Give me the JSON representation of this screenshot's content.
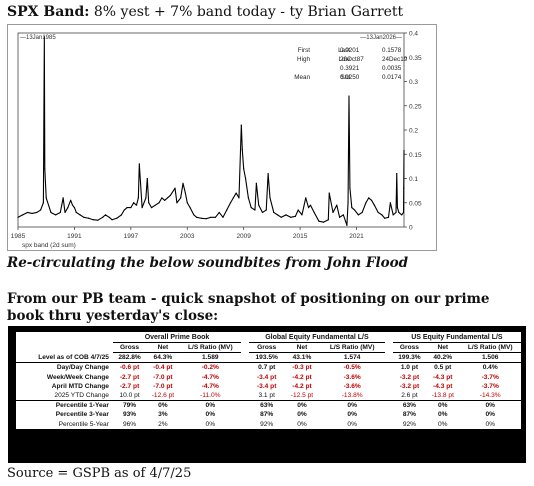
{
  "headline": {
    "bold": "SPX Band:",
    "rest": " 8% yest + 7% band today - ty Brian Garrett"
  },
  "chart_data": {
    "type": "line",
    "x_start_label": "13Jan1985",
    "x_end_label": "13Jan2026",
    "xtick_labels": [
      "1985",
      "1991",
      "1997",
      "2003",
      "2009",
      "2015",
      "2021"
    ],
    "xtick_years": [
      1985,
      1991,
      1997,
      2003,
      2009,
      2015,
      2021
    ],
    "xlim": [
      1985,
      2026.05
    ],
    "ylim": [
      0,
      0.4
    ],
    "ytick_labels": [
      "0",
      "0.05",
      "0.1",
      "0.15",
      "0.2",
      "0.25",
      "0.3",
      "0.35",
      "0.4"
    ],
    "ytick_values": [
      0,
      0.05,
      0.1,
      0.15,
      0.2,
      0.25,
      0.3,
      0.35,
      0.4
    ],
    "xlabel": "spx band (2d sum)",
    "line_color": "#000000",
    "stats": [
      [
        "First",
        "0.0201",
        "Last",
        "0.1578"
      ],
      [
        "High",
        "20Oct87",
        "Low",
        "24Dec19"
      ],
      [
        "",
        "0.3921",
        "",
        "0.0035"
      ],
      [
        "Mean",
        "0.0250",
        "Std",
        "0.0174"
      ]
    ],
    "series": [
      {
        "x": [
          1985.0,
          1985.5,
          1986.0,
          1986.5,
          1987.0,
          1987.4,
          1987.7,
          1987.8,
          1987.85,
          1988.0,
          1988.5,
          1989.0,
          1989.5,
          1989.8,
          1990.0,
          1990.3,
          1990.6,
          1990.8,
          1991.0,
          1991.2,
          1991.6,
          1992.0,
          1992.5,
          1993.0,
          1993.5,
          1994.0,
          1994.3,
          1994.7,
          1995.0,
          1995.5,
          1996.0,
          1996.3,
          1996.6,
          1997.0,
          1997.3,
          1997.6,
          1997.8,
          1997.9,
          1998.2,
          1998.6,
          1998.75,
          1998.9,
          1999.2,
          1999.6,
          2000.0,
          2000.3,
          2000.6,
          2000.9,
          2001.2,
          2001.7,
          2001.9,
          2002.3,
          2002.55,
          2002.8,
          2003.0,
          2003.3,
          2003.7,
          2004.0,
          2004.5,
          2005.0,
          2005.5,
          2006.0,
          2006.4,
          2006.8,
          2007.2,
          2007.6,
          2007.9,
          2008.2,
          2008.5,
          2008.75,
          2008.85,
          2009.0,
          2009.2,
          2009.5,
          2009.8,
          2010.2,
          2010.35,
          2010.6,
          2011.0,
          2011.4,
          2011.6,
          2011.8,
          2012.2,
          2012.6,
          2013.0,
          2013.5,
          2014.0,
          2014.5,
          2014.8,
          2015.2,
          2015.6,
          2015.9,
          2016.1,
          2016.5,
          2017.0,
          2017.5,
          2018.0,
          2018.1,
          2018.5,
          2018.9,
          2019.2,
          2019.6,
          2019.98,
          2020.1,
          2020.2,
          2020.3,
          2020.5,
          2020.8,
          2021.2,
          2021.6,
          2022.0,
          2022.3,
          2022.6,
          2022.9,
          2023.3,
          2023.7,
          2024.0,
          2024.4,
          2024.6,
          2024.9,
          2025.2,
          2025.28,
          2025.35,
          2025.5,
          2025.8,
          2026.0,
          2026.02,
          2026.05
        ],
        "y": [
          0.02,
          0.025,
          0.03,
          0.028,
          0.03,
          0.035,
          0.05,
          0.3921,
          0.12,
          0.06,
          0.03,
          0.025,
          0.03,
          0.06,
          0.03,
          0.04,
          0.055,
          0.045,
          0.04,
          0.03,
          0.025,
          0.02,
          0.018,
          0.015,
          0.014,
          0.02,
          0.025,
          0.02,
          0.015,
          0.018,
          0.025,
          0.035,
          0.04,
          0.04,
          0.05,
          0.045,
          0.06,
          0.13,
          0.04,
          0.06,
          0.1,
          0.05,
          0.04,
          0.045,
          0.05,
          0.06,
          0.055,
          0.06,
          0.065,
          0.08,
          0.05,
          0.06,
          0.09,
          0.07,
          0.05,
          0.04,
          0.025,
          0.02,
          0.018,
          0.017,
          0.02,
          0.02,
          0.03,
          0.02,
          0.035,
          0.05,
          0.06,
          0.07,
          0.06,
          0.21,
          0.16,
          0.12,
          0.1,
          0.06,
          0.04,
          0.035,
          0.09,
          0.045,
          0.03,
          0.035,
          0.11,
          0.06,
          0.03,
          0.025,
          0.02,
          0.025,
          0.02,
          0.022,
          0.035,
          0.025,
          0.06,
          0.04,
          0.045,
          0.03,
          0.012,
          0.01,
          0.015,
          0.07,
          0.03,
          0.045,
          0.02,
          0.025,
          0.0035,
          0.05,
          0.27,
          0.08,
          0.04,
          0.035,
          0.025,
          0.03,
          0.05,
          0.06,
          0.055,
          0.045,
          0.03,
          0.025,
          0.018,
          0.02,
          0.05,
          0.025,
          0.03,
          0.11,
          0.04,
          0.03,
          0.025,
          0.03,
          0.08,
          0.1578
        ]
      }
    ]
  },
  "recirc_text": "Re-circulating the below soundbites from John Flood",
  "pb_intro": "From our PB team - quick snapshot of positioning on our prime book thru yesterday's close:",
  "table": {
    "groups": [
      "Overall Prime Book",
      "Global Equity Fundamental L/S",
      "US Equity Fundamental L/S"
    ],
    "subheaders": [
      "Gross",
      "Net",
      "L/S Ratio (MV)"
    ],
    "rows": [
      {
        "label": "Level as of COB 4/7/25",
        "cells": [
          "282.8%",
          "64.3%",
          "1.589",
          "193.5%",
          "43.1%",
          "1.574",
          "199.3%",
          "40.2%",
          "1.506"
        ]
      },
      {
        "label": "Day/Day Change",
        "cells": [
          "-0.6 pt",
          "-0.4 pt",
          "-0.2%",
          "0.7 pt",
          "-0.3 pt",
          "-0.5%",
          "1.0 pt",
          "0.5 pt",
          "0.4%"
        ]
      },
      {
        "label": "Week/Week Change",
        "cells": [
          "-2.7 pt",
          "-7.0 pt",
          "-4.7%",
          "-3.4 pt",
          "-4.2 pt",
          "-3.6%",
          "-3.2 pt",
          "-4.3 pt",
          "-3.7%"
        ]
      },
      {
        "label": "April MTD Change",
        "cells": [
          "-2.7 pt",
          "-7.0 pt",
          "-4.7%",
          "-3.4 pt",
          "-4.2 pt",
          "-3.6%",
          "-3.2 pt",
          "-4.3 pt",
          "-3.7%"
        ]
      },
      {
        "label": "2025 YTD Change",
        "cells": [
          "10.0 pt",
          "-12.6 pt",
          "-11.0%",
          "3.1 pt",
          "-12.5 pt",
          "-13.8%",
          "2.6 pt",
          "-13.8 pt",
          "-14.3%"
        ]
      },
      {
        "label": "Percentile 1-Year",
        "cells": [
          "79%",
          "0%",
          "0%",
          "63%",
          "0%",
          "0%",
          "63%",
          "0%",
          "0%"
        ]
      },
      {
        "label": "Percentile 3-Year",
        "cells": [
          "93%",
          "3%",
          "0%",
          "87%",
          "0%",
          "0%",
          "87%",
          "0%",
          "0%"
        ]
      },
      {
        "label": "Percentile 5-Year",
        "cells": [
          "96%",
          "2%",
          "0%",
          "92%",
          "0%",
          "0%",
          "92%",
          "0%",
          "0%"
        ]
      }
    ]
  },
  "source": "Source = GSPB as of 4/7/25"
}
